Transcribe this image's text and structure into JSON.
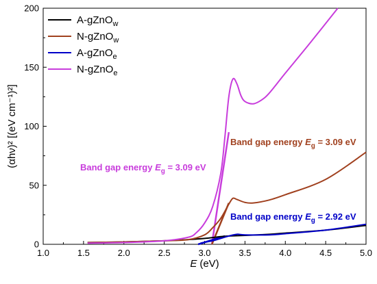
{
  "chart_data": {
    "type": "line",
    "xlabel_symbol": "E",
    "xlabel_unit": "(eV)",
    "ylabel": "(αhν)² [(eV cm⁻¹)²]",
    "xlim": [
      1.0,
      5.0
    ],
    "ylim": [
      0,
      200
    ],
    "xticks": [
      1.0,
      1.5,
      2.0,
      2.5,
      3.0,
      3.5,
      4.0,
      4.5,
      5.0
    ],
    "yticks": [
      0,
      50,
      100,
      150,
      200
    ],
    "grid": false,
    "legend_position": "top-left",
    "series": [
      {
        "name": "A-gZnO",
        "sub": "w",
        "color": "#000000",
        "x": [
          1.55,
          2.0,
          2.5,
          2.8,
          3.0,
          3.2,
          3.3,
          3.5,
          3.8,
          4.0,
          4.5,
          5.0
        ],
        "y": [
          1.5,
          2.0,
          3.0,
          4.0,
          5.0,
          6.5,
          7.0,
          7.5,
          8.5,
          9.5,
          12.0,
          16.0
        ]
      },
      {
        "name": "N-gZnO",
        "sub": "w",
        "color": "#a0401e",
        "x": [
          1.55,
          2.0,
          2.5,
          2.8,
          3.0,
          3.1,
          3.2,
          3.3,
          3.35,
          3.4,
          3.5,
          3.6,
          3.8,
          4.0,
          4.5,
          5.0
        ],
        "y": [
          1.5,
          2.0,
          3.0,
          4.0,
          8.0,
          14.0,
          22.0,
          34.0,
          39.0,
          38.0,
          35.5,
          35.0,
          37.5,
          42.0,
          55.0,
          78.0
        ]
      },
      {
        "name": "A-gZnO",
        "sub": "e",
        "color": "#0000c8",
        "x": [
          2.95,
          3.1,
          3.2,
          3.3,
          3.4,
          3.5,
          3.8,
          4.0,
          4.5,
          5.0
        ],
        "y": [
          1.0,
          3.0,
          5.0,
          7.0,
          8.5,
          8.0,
          8.0,
          9.0,
          12.0,
          17.0
        ]
      },
      {
        "name": "N-gZnO",
        "sub": "e",
        "color": "#c83cdc",
        "x": [
          1.55,
          2.0,
          2.5,
          2.8,
          2.9,
          3.0,
          3.1,
          3.2,
          3.25,
          3.3,
          3.35,
          3.4,
          3.45,
          3.5,
          3.6,
          3.7,
          3.8,
          4.0,
          4.3,
          4.65
        ],
        "y": [
          1.0,
          1.5,
          3.0,
          6.0,
          10.0,
          18.0,
          32.0,
          60.0,
          90.0,
          125.0,
          140.0,
          136.0,
          126.0,
          121.0,
          119.0,
          122.0,
          128.0,
          145.0,
          170.0,
          200.0
        ]
      }
    ],
    "fit_lines": [
      {
        "color": "#c83cdc",
        "x": [
          3.09,
          3.3
        ],
        "y": [
          0,
          95
        ]
      },
      {
        "color": "#a0401e",
        "x": [
          3.09,
          3.3
        ],
        "y": [
          0,
          35
        ]
      },
      {
        "color": "#0000c8",
        "x": [
          2.92,
          3.25
        ],
        "y": [
          0,
          7
        ]
      }
    ],
    "annotations": [
      {
        "prefix": "Band gap energy ",
        "sym": "E",
        "sub": "g",
        "value": " = 3.09 eV",
        "color": "#c83cdc"
      },
      {
        "prefix": "Band gap energy ",
        "sym": "E",
        "sub": "g",
        "value": " = 3.09 eV",
        "color": "#a0401e"
      },
      {
        "prefix": "Band gap energy ",
        "sym": "E",
        "sub": "g",
        "value": " = 2.92 eV",
        "color": "#0000c8"
      }
    ]
  }
}
